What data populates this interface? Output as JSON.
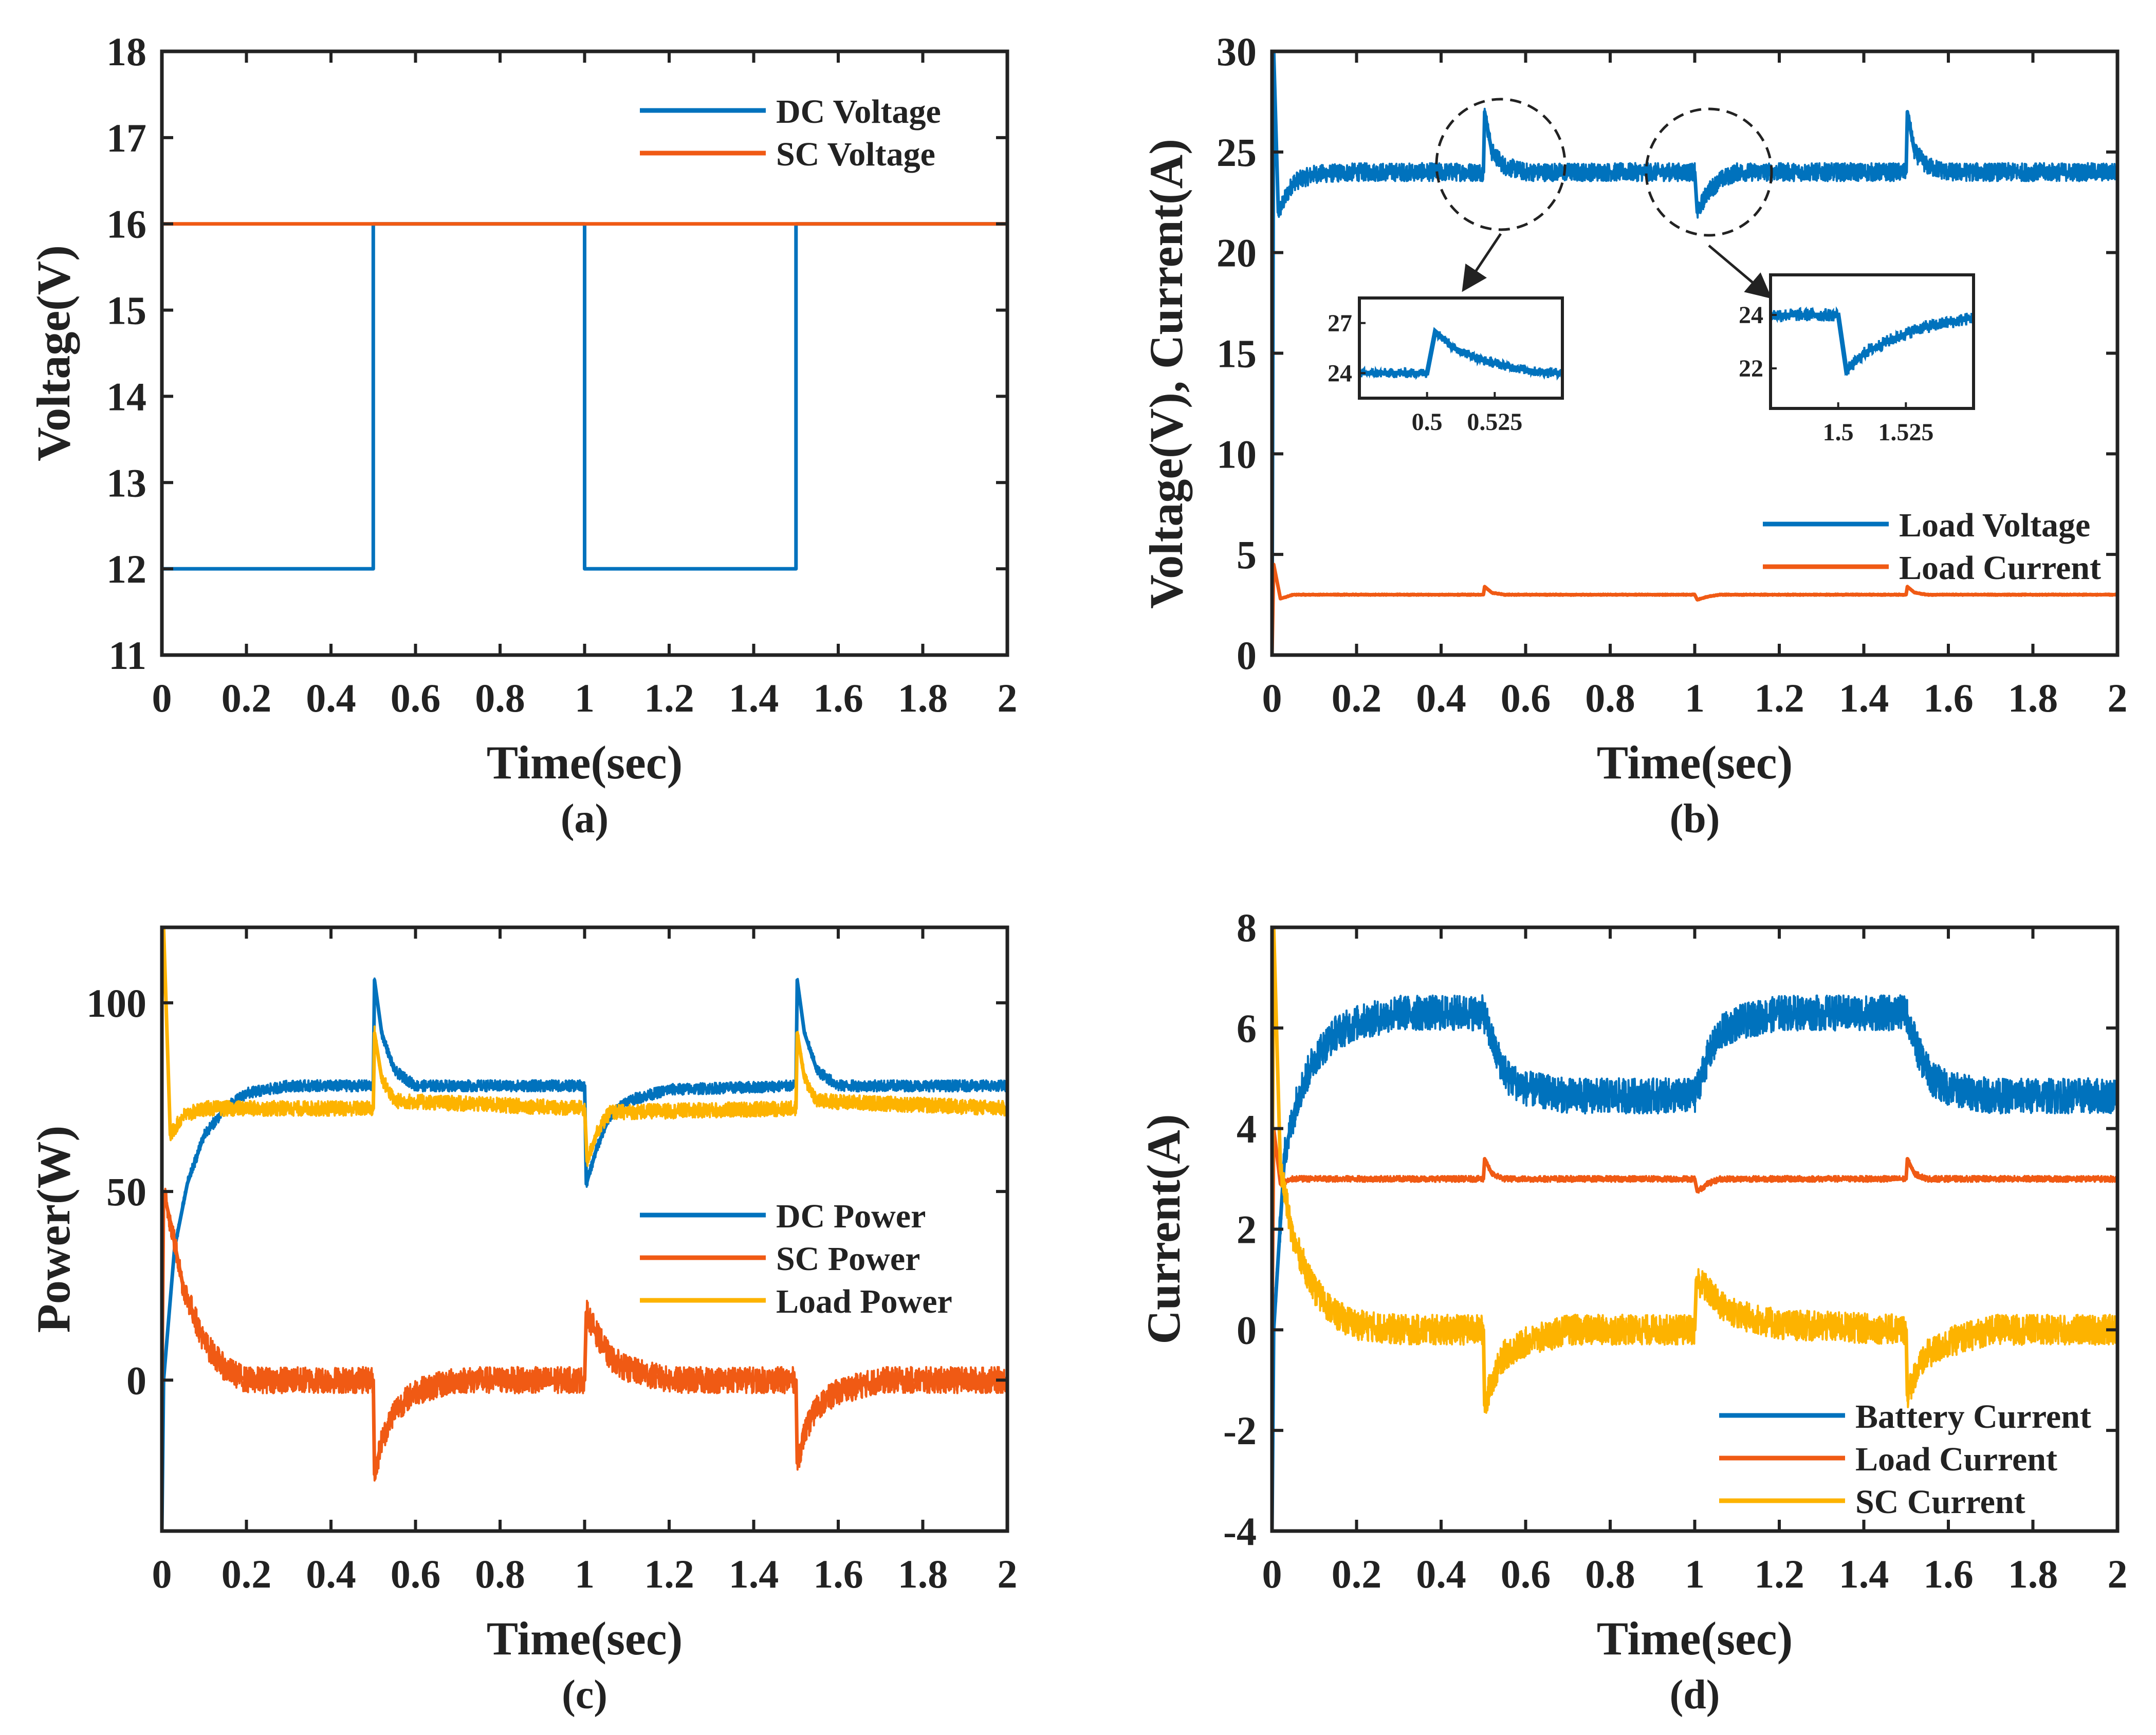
{
  "colors": {
    "blue": "#0072BD",
    "orange": "#F05A14",
    "yellow": "#FDB300",
    "axis": "#222222"
  },
  "chart_data": [
    {
      "id": "a",
      "type": "line",
      "panel_label": "(a)",
      "xlabel": "Time(sec)",
      "ylabel": "Voltage(V)",
      "xlim": [
        0,
        2
      ],
      "ylim": [
        11,
        18
      ],
      "xticks": [
        0,
        0.2,
        0.4,
        0.6,
        0.8,
        1,
        1.2,
        1.4,
        1.6,
        1.8,
        2
      ],
      "xtick_labels": [
        "0",
        "0.2",
        "0.4",
        "0.6",
        "0.8",
        "1",
        "1.2",
        "1.4",
        "1.6",
        "1.8",
        "2"
      ],
      "yticks": [
        11,
        12,
        13,
        14,
        15,
        16,
        17,
        18
      ],
      "ytick_labels": [
        "11",
        "12",
        "13",
        "14",
        "15",
        "16",
        "17",
        "18"
      ],
      "legend_position": "top-right",
      "series": [
        {
          "name": "DC Voltage",
          "color": "blue",
          "x": [
            0,
            0.5,
            0.5,
            1.0,
            1.0,
            1.5,
            1.5,
            2.0
          ],
          "y": [
            12,
            12,
            16,
            16,
            12,
            12,
            16,
            16
          ]
        },
        {
          "name": "SC Voltage",
          "color": "orange",
          "x": [
            0,
            2
          ],
          "y": [
            16,
            16
          ]
        }
      ]
    },
    {
      "id": "b",
      "type": "line",
      "panel_label": "(b)",
      "xlabel": "Time(sec)",
      "ylabel": "Voltage(V), Current(A)",
      "xlim": [
        0,
        2
      ],
      "ylim": [
        0,
        30
      ],
      "xticks": [
        0,
        0.2,
        0.4,
        0.6,
        0.8,
        1,
        1.2,
        1.4,
        1.6,
        1.8,
        2
      ],
      "xtick_labels": [
        "0",
        "0.2",
        "0.4",
        "0.6",
        "0.8",
        "1",
        "1.2",
        "1.4",
        "1.6",
        "1.8",
        "2"
      ],
      "yticks": [
        0,
        5,
        10,
        15,
        20,
        25,
        30
      ],
      "ytick_labels": [
        "0",
        "5",
        "10",
        "15",
        "20",
        "25",
        "30"
      ],
      "legend_position": "bottom-right",
      "series": [
        {
          "name": "Load Voltage",
          "color": "blue",
          "noise": 0.9,
          "x": [
            0,
            0.004,
            0.015,
            0.05,
            0.1,
            0.2,
            0.5,
            0.503,
            0.52,
            0.55,
            0.6,
            1.0,
            1.006,
            1.03,
            1.06,
            1.1,
            1.5,
            1.503,
            1.52,
            1.55,
            1.6,
            2.0
          ],
          "y": [
            0,
            30,
            22,
            23.5,
            23.9,
            24,
            24,
            27,
            25,
            24.3,
            24,
            24,
            22,
            23,
            23.6,
            24,
            24,
            27,
            25,
            24.3,
            24,
            24
          ]
        },
        {
          "name": "Load Current",
          "color": "orange",
          "noise": 0.12,
          "x": [
            0,
            0.004,
            0.02,
            0.05,
            0.5,
            0.503,
            0.52,
            0.55,
            1.0,
            1.006,
            1.03,
            1.06,
            1.5,
            1.503,
            1.52,
            1.55,
            2.0
          ],
          "y": [
            0,
            4.5,
            2.8,
            3.0,
            3.0,
            3.4,
            3.1,
            3.0,
            3.0,
            2.75,
            2.9,
            3.0,
            3.0,
            3.4,
            3.1,
            3.0,
            3.0
          ]
        }
      ],
      "insets": [
        {
          "xlim": [
            0.475,
            0.55
          ],
          "ylim": [
            22.5,
            28.5
          ],
          "xticks": [
            0.5,
            0.525
          ],
          "xtick_labels": [
            "0.5",
            "0.525"
          ],
          "yticks": [
            24,
            27
          ],
          "ytick_labels": [
            "24",
            "27"
          ],
          "x": [
            0.475,
            0.5,
            0.503,
            0.51,
            0.52,
            0.53,
            0.54,
            0.55
          ],
          "y": [
            24,
            24,
            26.5,
            25.5,
            24.8,
            24.4,
            24.1,
            24
          ],
          "noise": 0.6
        },
        {
          "xlim": [
            1.475,
            1.55
          ],
          "ylim": [
            20.5,
            25.5
          ],
          "xticks": [
            1.5,
            1.525
          ],
          "xtick_labels": [
            "1.5",
            "1.525"
          ],
          "yticks": [
            22,
            24
          ],
          "ytick_labels": [
            "22",
            "24"
          ],
          "x": [
            1.475,
            1.5,
            1.503,
            1.51,
            1.52,
            1.53,
            1.55
          ],
          "y": [
            24,
            24,
            21.9,
            22.6,
            23.1,
            23.5,
            23.9
          ],
          "noise": 0.5
        }
      ]
    },
    {
      "id": "c",
      "type": "line",
      "panel_label": "(c)",
      "xlabel": "Time(sec)",
      "ylabel": "Power(W)",
      "xlim": [
        0,
        2
      ],
      "ylim": [
        -40,
        120
      ],
      "xticks": [
        0,
        0.2,
        0.4,
        0.6,
        0.8,
        1,
        1.2,
        1.4,
        1.6,
        1.8,
        2
      ],
      "xtick_labels": [
        "0",
        "0.2",
        "0.4",
        "0.6",
        "0.8",
        "1",
        "1.2",
        "1.4",
        "1.6",
        "1.8",
        "2"
      ],
      "yticks": [
        0,
        50,
        100
      ],
      "ytick_labels": [
        "0",
        "50",
        "100"
      ],
      "legend_position": "center-right",
      "series": [
        {
          "name": "DC Power",
          "color": "blue",
          "noise": 3,
          "x": [
            0,
            0.004,
            0.03,
            0.06,
            0.1,
            0.15,
            0.2,
            0.3,
            0.5,
            0.503,
            0.52,
            0.55,
            0.6,
            1.0,
            1.004,
            1.03,
            1.06,
            1.1,
            1.2,
            1.5,
            1.503,
            1.52,
            1.55,
            1.6,
            2.0
          ],
          "y": [
            -40,
            0,
            35,
            52,
            65,
            72,
            76,
            78,
            78,
            106,
            92,
            82,
            78,
            78,
            52,
            62,
            70,
            74,
            77,
            78,
            106,
            92,
            82,
            78,
            78
          ]
        },
        {
          "name": "SC Power",
          "color": "orange",
          "noise": 7,
          "x": [
            0,
            0.004,
            0.02,
            0.05,
            0.1,
            0.15,
            0.2,
            0.3,
            0.5,
            0.503,
            0.52,
            0.55,
            0.6,
            0.7,
            1.0,
            1.004,
            1.03,
            1.06,
            1.1,
            1.2,
            1.5,
            1.503,
            1.52,
            1.55,
            1.6,
            1.7,
            2.0
          ],
          "y": [
            -5,
            50,
            42,
            25,
            10,
            3,
            0,
            0,
            0,
            -25,
            -16,
            -8,
            -3,
            0,
            0,
            18,
            12,
            6,
            3,
            0,
            0,
            -22,
            -14,
            -7,
            -3,
            0,
            0
          ]
        },
        {
          "name": "Load Power",
          "color": "yellow",
          "noise": 4,
          "x": [
            0,
            0.004,
            0.02,
            0.05,
            0.1,
            0.2,
            0.5,
            0.503,
            0.52,
            0.55,
            1.0,
            1.006,
            1.03,
            1.06,
            1.5,
            1.503,
            1.52,
            1.55,
            2.0
          ],
          "y": [
            100,
            120,
            65,
            70,
            72,
            72,
            72,
            92,
            80,
            74,
            72,
            58,
            66,
            71,
            72,
            92,
            80,
            74,
            72
          ]
        }
      ]
    },
    {
      "id": "d",
      "type": "line",
      "panel_label": "(d)",
      "xlabel": "Time(sec)",
      "ylabel": "Current(A)",
      "xlim": [
        0,
        2
      ],
      "ylim": [
        -4,
        8
      ],
      "xticks": [
        0,
        0.2,
        0.4,
        0.6,
        0.8,
        1,
        1.2,
        1.4,
        1.6,
        1.8,
        2
      ],
      "xtick_labels": [
        "0",
        "0.2",
        "0.4",
        "0.6",
        "0.8",
        "1",
        "1.2",
        "1.4",
        "1.6",
        "1.8",
        "2"
      ],
      "yticks": [
        -4,
        -2,
        0,
        2,
        4,
        6,
        8
      ],
      "ytick_labels": [
        "-4",
        "-2",
        "0",
        "2",
        "4",
        "6",
        "8"
      ],
      "legend_position": "bottom-right",
      "series": [
        {
          "name": "Battery Current",
          "color": "blue",
          "noise": 0.7,
          "x": [
            0,
            0.004,
            0.03,
            0.06,
            0.1,
            0.15,
            0.2,
            0.3,
            0.5,
            0.53,
            0.56,
            0.6,
            0.7,
            1.0,
            1.03,
            1.06,
            1.1,
            1.2,
            1.5,
            1.53,
            1.56,
            1.6,
            1.7,
            2.0
          ],
          "y": [
            -4,
            0,
            3.5,
            4.6,
            5.4,
            5.9,
            6.1,
            6.3,
            6.3,
            5.5,
            5.0,
            4.8,
            4.65,
            4.65,
            5.4,
            5.9,
            6.1,
            6.3,
            6.3,
            5.5,
            5.0,
            4.8,
            4.65,
            4.65
          ]
        },
        {
          "name": "Load Current",
          "color": "orange",
          "noise": 0.12,
          "x": [
            0,
            0.004,
            0.02,
            0.05,
            0.5,
            0.503,
            0.52,
            0.55,
            1.0,
            1.006,
            1.03,
            1.06,
            1.5,
            1.503,
            1.52,
            1.55,
            2.0
          ],
          "y": [
            0,
            4.0,
            2.9,
            3.0,
            3.0,
            3.4,
            3.1,
            3.0,
            3.0,
            2.75,
            2.9,
            3.0,
            3.0,
            3.4,
            3.1,
            3.0,
            3.0
          ]
        },
        {
          "name": "SC Current",
          "color": "yellow",
          "noise": 0.6,
          "x": [
            0,
            0.004,
            0.02,
            0.05,
            0.1,
            0.15,
            0.2,
            0.3,
            0.5,
            0.503,
            0.52,
            0.55,
            0.6,
            0.7,
            1.0,
            1.004,
            1.03,
            1.06,
            1.1,
            1.2,
            1.5,
            1.503,
            1.52,
            1.55,
            1.6,
            1.7,
            2.0
          ],
          "y": [
            2,
            8,
            3.2,
            1.8,
            0.8,
            0.3,
            0.1,
            0,
            0,
            -1.5,
            -1.0,
            -0.5,
            -0.25,
            0,
            0,
            1.0,
            0.8,
            0.5,
            0.3,
            0.1,
            0,
            -1.3,
            -0.9,
            -0.5,
            -0.25,
            0,
            0
          ]
        }
      ]
    }
  ]
}
